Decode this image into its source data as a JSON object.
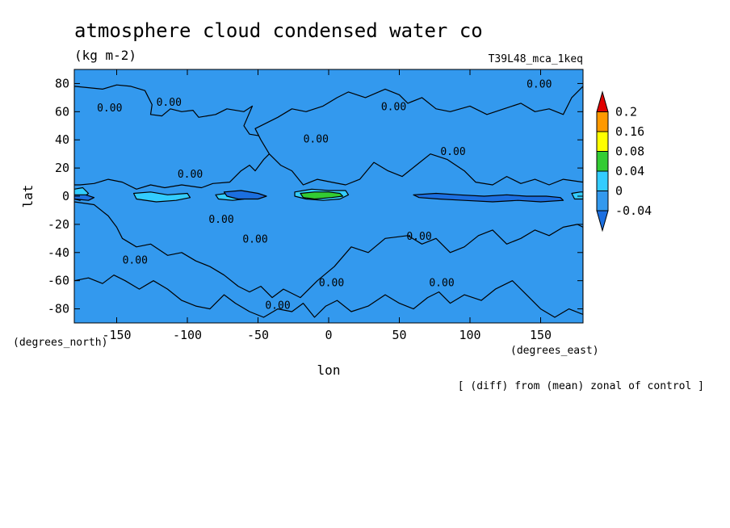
{
  "chart_data": {
    "type": "heatmap",
    "title": "atmosphere cloud condensed water co",
    "units": "(kg m-2)",
    "run_label": "T39L48_mca_1keq",
    "xlabel": "lon",
    "ylabel": "lat",
    "x_units": "(degrees_east)",
    "y_units": "(degrees_north)",
    "note": "[ (diff) from (mean) zonal of control ]",
    "xlim": [
      -180,
      180
    ],
    "ylim": [
      -90,
      90
    ],
    "x_ticks": [
      {
        "v": -150,
        "t": "-150"
      },
      {
        "v": -100,
        "t": "-100"
      },
      {
        "v": -50,
        "t": "-50"
      },
      {
        "v": 0,
        "t": "0"
      },
      {
        "v": 50,
        "t": "50"
      },
      {
        "v": 100,
        "t": "100"
      },
      {
        "v": 150,
        "t": "150"
      }
    ],
    "y_ticks": [
      {
        "v": 80,
        "t": "80"
      },
      {
        "v": 60,
        "t": "60"
      },
      {
        "v": 40,
        "t": "40"
      },
      {
        "v": 20,
        "t": "20"
      },
      {
        "v": 0,
        "t": "0"
      },
      {
        "v": -20,
        "t": "-20"
      },
      {
        "v": -40,
        "t": "-40"
      },
      {
        "v": -60,
        "t": "-60"
      },
      {
        "v": -80,
        "t": "-80"
      }
    ],
    "colorbar": {
      "levels": [
        "0.2",
        "0.16",
        "0.08",
        "0.04",
        "0",
        "-0.04"
      ],
      "colors": [
        "#e00000",
        "#ff9900",
        "#ffff00",
        "#33cc33",
        "#33ccff",
        "#3399ee",
        "#1c6fe0"
      ]
    },
    "background_color": "#3399ee",
    "contour_label": "0.00",
    "contour_labels": [
      {
        "x": -155,
        "y": 63
      },
      {
        "x": -113,
        "y": 67
      },
      {
        "x": -9,
        "y": 41
      },
      {
        "x": 46,
        "y": 64
      },
      {
        "x": 88,
        "y": 32
      },
      {
        "x": -98,
        "y": 16
      },
      {
        "x": 149,
        "y": 80
      },
      {
        "x": -76,
        "y": -16
      },
      {
        "x": -52,
        "y": -30
      },
      {
        "x": 64,
        "y": -28
      },
      {
        "x": -137,
        "y": -45
      },
      {
        "x": 2,
        "y": -61
      },
      {
        "x": 80,
        "y": -61
      },
      {
        "x": -36,
        "y": -77
      }
    ],
    "regions": [
      {
        "level": "0",
        "x": [
          -180,
          -160,
          -150,
          -140,
          -130,
          -125,
          -126,
          -118,
          -112,
          -104,
          -96,
          -92,
          -80,
          -72,
          -60,
          -54,
          -60,
          -56,
          -44,
          -40,
          -46,
          -52,
          -56,
          -62,
          -70,
          -82,
          -90,
          -104,
          -116,
          -126,
          -136,
          -146,
          -156,
          -166,
          -176,
          -180
        ],
        "y": [
          78,
          76,
          79,
          78,
          75,
          65,
          58,
          57,
          62,
          60,
          61,
          56,
          58,
          62,
          60,
          64,
          50,
          44,
          42,
          32,
          26,
          18,
          22,
          18,
          10,
          9,
          6,
          8,
          6,
          8,
          5,
          10,
          12,
          9,
          8,
          8
        ]
      },
      {
        "level": "0",
        "x": [
          -52,
          -36,
          -26,
          -16,
          -4,
          6,
          14,
          26,
          40,
          50,
          56,
          66,
          76,
          86,
          100,
          112,
          124,
          136,
          146,
          156,
          166,
          172,
          180,
          180,
          166,
          156,
          146,
          136,
          126,
          116,
          104,
          96,
          84,
          72,
          62,
          52,
          42,
          32,
          22,
          12,
          2,
          -8,
          -18,
          -26,
          -34,
          -42,
          -48,
          -52
        ],
        "y": [
          48,
          56,
          62,
          60,
          64,
          70,
          74,
          70,
          76,
          72,
          66,
          70,
          62,
          60,
          64,
          58,
          62,
          66,
          60,
          62,
          58,
          70,
          78,
          10,
          12,
          8,
          12,
          9,
          14,
          8,
          10,
          18,
          26,
          30,
          22,
          14,
          18,
          24,
          12,
          8,
          10,
          12,
          8,
          18,
          22,
          30,
          40,
          48
        ]
      },
      {
        "level": "0",
        "x": [
          -180,
          -166,
          -156,
          -150,
          -146,
          -136,
          -126,
          -114,
          -104,
          -94,
          -84,
          -74,
          -64,
          -56,
          -48,
          -40,
          -32,
          -20,
          -8,
          4,
          16,
          28,
          40,
          56,
          66,
          76,
          86,
          96,
          106,
          116,
          126,
          136,
          146,
          156,
          166,
          176,
          180,
          180,
          170,
          160,
          150,
          140,
          130,
          118,
          108,
          96,
          86,
          78,
          70,
          60,
          50,
          40,
          28,
          16,
          6,
          -2,
          -10,
          -18,
          -26,
          -36,
          -46,
          -56,
          -66,
          -74,
          -84,
          -94,
          -104,
          -114,
          -124,
          -134,
          -144,
          -152,
          -160,
          -170,
          -180
        ],
        "y": [
          -4,
          -6,
          -14,
          -22,
          -30,
          -36,
          -34,
          -42,
          -40,
          -46,
          -50,
          -56,
          -64,
          -68,
          -64,
          -72,
          -66,
          -72,
          -60,
          -50,
          -36,
          -40,
          -30,
          -28,
          -34,
          -30,
          -40,
          -36,
          -28,
          -24,
          -34,
          -30,
          -24,
          -28,
          -22,
          -20,
          -22,
          -84,
          -80,
          -86,
          -80,
          -70,
          -60,
          -66,
          -74,
          -70,
          -76,
          -68,
          -72,
          -80,
          -76,
          -70,
          -78,
          -82,
          -74,
          -78,
          -86,
          -76,
          -82,
          -80,
          -86,
          -82,
          -76,
          -70,
          -80,
          -78,
          -74,
          -66,
          -60,
          -66,
          -60,
          -56,
          -62,
          -58,
          -60
        ]
      },
      {
        "level": "0.04",
        "x": [
          -180,
          -174,
          -170,
          -176,
          -180
        ],
        "y": [
          5,
          6,
          2,
          -3,
          -2
        ]
      },
      {
        "level": "0.04",
        "x": [
          -138,
          -126,
          -114,
          -100,
          -98,
          -108,
          -122,
          -136
        ],
        "y": [
          2,
          3,
          1,
          2,
          -1,
          -3,
          -4,
          -2
        ]
      },
      {
        "level": "0.04",
        "x": [
          -80,
          -72,
          -62,
          -60,
          -68,
          -78
        ],
        "y": [
          1,
          2,
          1,
          -2,
          -3,
          -2
        ]
      },
      {
        "level": "0.04",
        "x": [
          -24,
          -12,
          0,
          12,
          14,
          8,
          -4,
          -16,
          -24
        ],
        "y": [
          3,
          5,
          4,
          4,
          1,
          -2,
          -3,
          -2,
          0
        ]
      },
      {
        "level": "0.04",
        "x": [
          172,
          178,
          180,
          180,
          174
        ],
        "y": [
          2,
          3,
          3,
          -2,
          -2
        ]
      },
      {
        "level": "0.08",
        "x": [
          -20,
          -10,
          0,
          8,
          10,
          2,
          -10,
          -18
        ],
        "y": [
          2,
          3,
          3,
          2,
          0,
          -1,
          -2,
          -1
        ]
      },
      {
        "level": "-0.04",
        "x": [
          -74,
          -62,
          -50,
          -44,
          -50,
          -64,
          -72
        ],
        "y": [
          3,
          4,
          2,
          0,
          -2,
          -2,
          0
        ]
      },
      {
        "level": "-0.04",
        "x": [
          60,
          76,
          92,
          110,
          126,
          140,
          154,
          164,
          166,
          150,
          134,
          116,
          96,
          78,
          64
        ],
        "y": [
          1,
          2,
          1,
          0,
          1,
          0,
          0,
          -1,
          -3,
          -4,
          -3,
          -4,
          -3,
          -2,
          -1
        ]
      },
      {
        "level": "-0.04",
        "x": [
          -180,
          -172,
          -166,
          -170,
          -180
        ],
        "y": [
          1,
          1,
          -1,
          -3,
          -2
        ]
      }
    ]
  }
}
